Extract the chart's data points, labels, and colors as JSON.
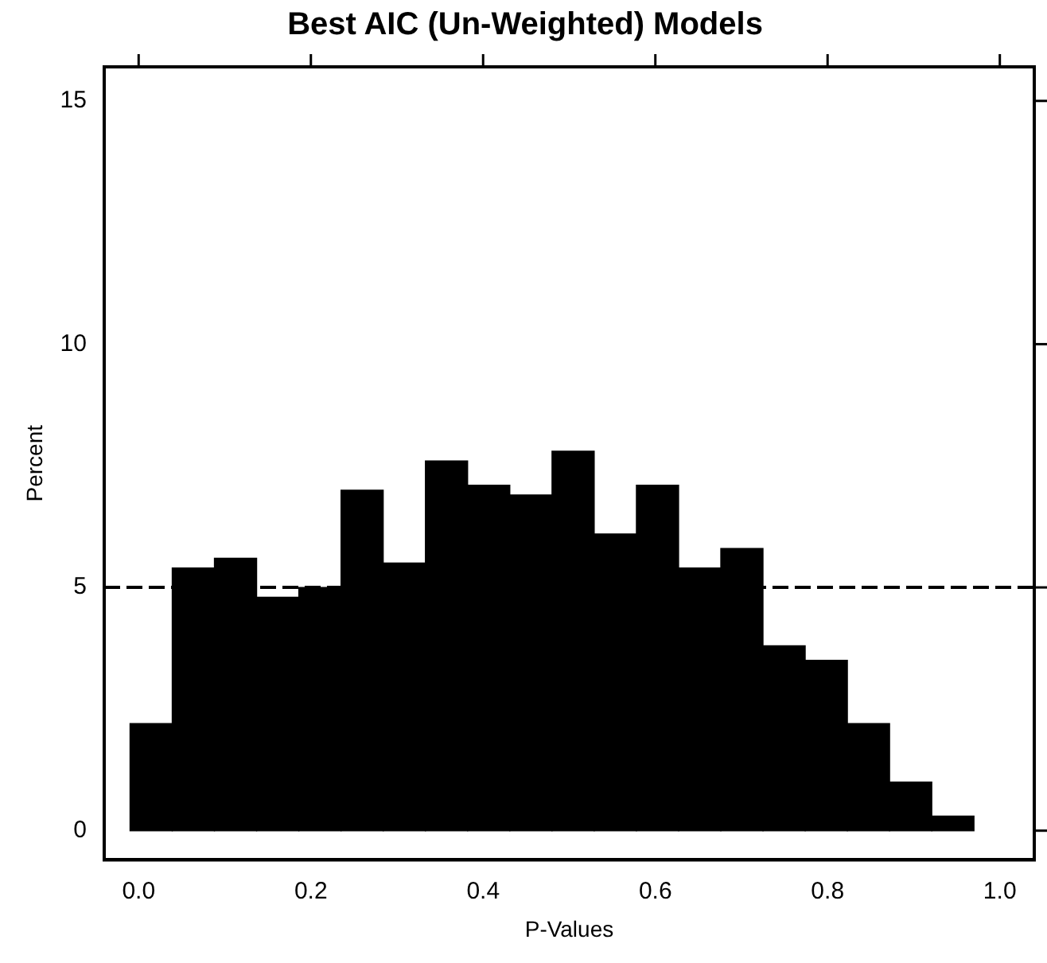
{
  "chart_data": {
    "type": "histogram",
    "title": "Best AIC (Un-Weighted) Models",
    "xlabel": "P-Values",
    "ylabel": "Percent",
    "bins": [
      -0.01,
      0.039,
      0.088,
      0.137,
      0.186,
      0.235,
      0.284,
      0.333,
      0.382,
      0.431,
      0.48,
      0.529,
      0.578,
      0.627,
      0.676,
      0.725,
      0.774,
      0.823,
      0.872,
      0.921,
      0.97
    ],
    "values": [
      2.2,
      5.4,
      5.6,
      4.8,
      5.0,
      7.0,
      5.5,
      7.6,
      7.1,
      6.9,
      7.8,
      6.1,
      7.1,
      5.4,
      5.8,
      3.8,
      3.5,
      2.2,
      1.0,
      0.3
    ],
    "color": "#000000",
    "xlim": [
      -0.04,
      1.04
    ],
    "xticks": [
      {
        "value": 0,
        "label": "0.0"
      },
      0.2,
      0.4,
      0.6,
      0.8,
      {
        "value": 1,
        "label": "1.0"
      }
    ],
    "ylim": [
      -0.6,
      15.7
    ],
    "yticks": [
      0,
      5,
      10,
      15
    ],
    "ref_lines": [
      {
        "axis": "y",
        "value": 5,
        "line_style": "dashed",
        "color": "#000000"
      }
    ],
    "grid": false,
    "legend": false
  }
}
